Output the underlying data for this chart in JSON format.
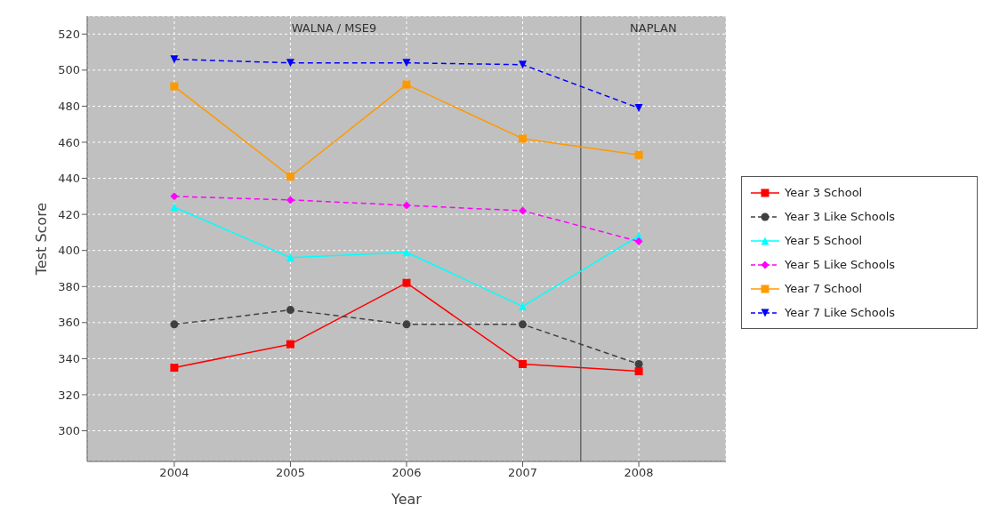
{
  "chart_data": {
    "type": "line",
    "xlabel": "Year",
    "ylabel": "Test Score",
    "x": [
      2004,
      2005,
      2006,
      2007,
      2008
    ],
    "xlim": [
      2003.25,
      2008.75
    ],
    "xticks": [
      2004,
      2005,
      2006,
      2007,
      2008
    ],
    "ylim": [
      283,
      530
    ],
    "yticks": [
      300,
      320,
      340,
      360,
      380,
      400,
      420,
      440,
      460,
      480,
      500,
      520
    ],
    "grid": true,
    "legend": "right",
    "ref_lines": [
      {
        "axis": "x",
        "value": 2007.5,
        "color": "#666666"
      }
    ],
    "annotations": [
      "WALNA / MSE9",
      "NAPLAN"
    ],
    "series": [
      {
        "name": "Year 3 School",
        "color": "#ff0000",
        "marker": "square",
        "line_style": "solid",
        "values": [
          335,
          348,
          382,
          337,
          333
        ]
      },
      {
        "name": "Year 3 Like Schools",
        "color": "#404040",
        "marker": "circle",
        "line_style": "dashed",
        "values": [
          359,
          367,
          359,
          359,
          337
        ]
      },
      {
        "name": "Year 5 School",
        "color": "#00ffff",
        "marker": "triangle",
        "line_style": "solid",
        "values": [
          424,
          396,
          399,
          369,
          408
        ]
      },
      {
        "name": "Year 5 Like Schools",
        "color": "#ff00ff",
        "marker": "diamond",
        "line_style": "dashed",
        "values": [
          430,
          428,
          425,
          422,
          405
        ]
      },
      {
        "name": "Year 7 School",
        "color": "#ff9900",
        "marker": "square",
        "line_style": "solid",
        "values": [
          491,
          441,
          492,
          462,
          453
        ]
      },
      {
        "name": "Year 7 Like Schools",
        "color": "#0000ff",
        "marker": "triangle-down",
        "line_style": "dashed",
        "values": [
          506,
          504,
          504,
          503,
          479
        ]
      }
    ]
  }
}
